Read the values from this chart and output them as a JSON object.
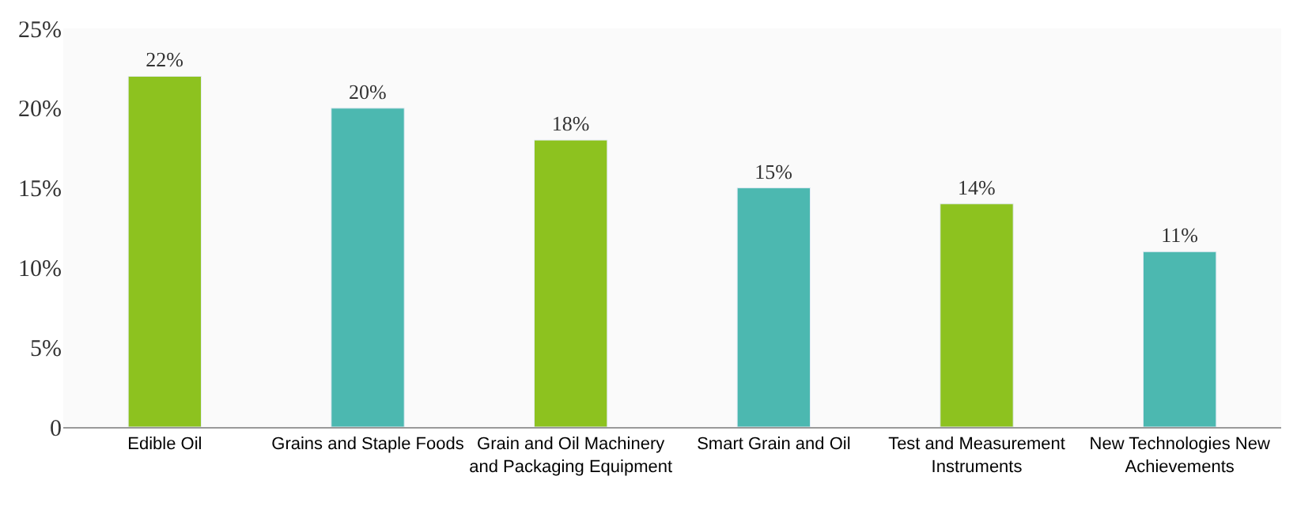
{
  "chart_data": {
    "type": "bar",
    "categories": [
      "Edible Oil",
      "Grains and Staple Foods",
      "Grain and Oil Machinery and Packaging Equipment",
      "Smart Grain and Oil",
      "Test and Measurement Instruments",
      "New Technologies New Achievements"
    ],
    "values": [
      22,
      20,
      18,
      15,
      14,
      11
    ],
    "colors": [
      "#8dc21f",
      "#4cb8b0",
      "#8dc21f",
      "#4cb8b0",
      "#8dc21f",
      "#4cb8b0"
    ],
    "value_labels": [
      "22%",
      "20%",
      "18%",
      "15%",
      "14%",
      "11%"
    ],
    "ylim": [
      0,
      25
    ],
    "yticks": [
      {
        "value": 0,
        "label": "0"
      },
      {
        "value": 5,
        "label": "5%"
      },
      {
        "value": 10,
        "label": "10%"
      },
      {
        "value": 15,
        "label": "15%"
      },
      {
        "value": 20,
        "label": "20%"
      },
      {
        "value": 25,
        "label": "25%"
      }
    ],
    "stacked": false
  }
}
